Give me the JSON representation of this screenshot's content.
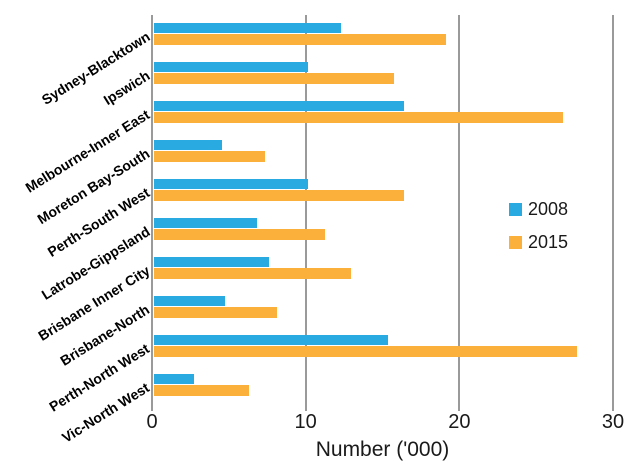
{
  "chart_data": {
    "type": "bar",
    "orientation": "horizontal",
    "title": "",
    "xlabel": "Number ('000)",
    "ylabel": "",
    "xlim": [
      0,
      30
    ],
    "xticks": [
      0,
      10,
      20,
      30
    ],
    "grid": true,
    "grid_color": "#9a9a9a",
    "legend_position": "middle-right",
    "categories": [
      "Sydney-Blacktown",
      "Ipswich",
      "Melbourne-Inner East",
      "Moreton Bay-South",
      "Perth-South West",
      "Latrobe-Gippsland",
      "Brisbane Inner City",
      "Brisbane-North",
      "Perth-North West",
      "Vic-North West"
    ],
    "series": [
      {
        "name": "2008",
        "color": "#29ABE2",
        "values": [
          12.2,
          10.0,
          16.3,
          4.4,
          10.0,
          6.7,
          7.5,
          4.6,
          15.2,
          2.6
        ]
      },
      {
        "name": "2015",
        "color": "#FBB03B",
        "values": [
          19.0,
          15.6,
          26.6,
          7.2,
          16.3,
          11.1,
          12.8,
          8.0,
          27.5,
          6.2
        ]
      }
    ]
  }
}
